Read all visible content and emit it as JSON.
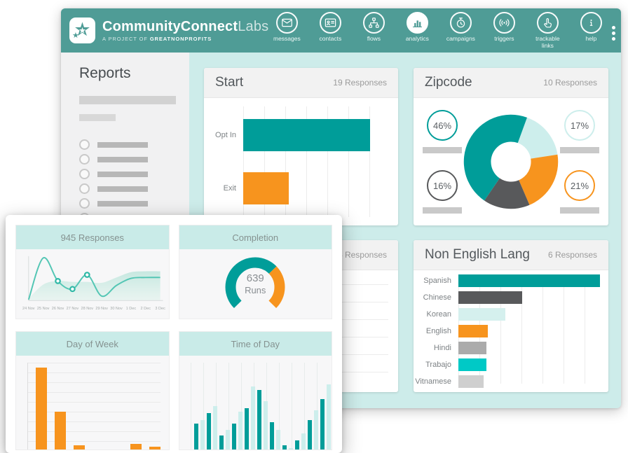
{
  "brand": {
    "name_bold": "CommunityConnect",
    "name_light": "Labs",
    "tagline_prefix": "A PROJECT OF ",
    "tagline_name": "GREATNONPROFITS"
  },
  "nav": {
    "items": [
      {
        "icon": "envelope-icon",
        "label": "messages",
        "active": false
      },
      {
        "icon": "contact-card-icon",
        "label": "contacts",
        "active": false
      },
      {
        "icon": "flow-tree-icon",
        "label": "flows",
        "active": false
      },
      {
        "icon": "bar-chart-icon",
        "label": "analytics",
        "active": true
      },
      {
        "icon": "stopwatch-icon",
        "label": "campaigns",
        "active": false
      },
      {
        "icon": "radio-signal-icon",
        "label": "triggers",
        "active": false
      },
      {
        "icon": "pointer-hand-icon",
        "label": "trackable links",
        "active": false
      },
      {
        "icon": "info-icon",
        "label": "help",
        "active": false
      }
    ]
  },
  "sidebar": {
    "title": "Reports",
    "placeholder_rows": 7
  },
  "cards": {
    "start": {
      "title": "Start",
      "responses": "19 Responses"
    },
    "zipcode": {
      "title": "Zipcode",
      "responses": "10 Responses",
      "badges": [
        {
          "label": "46%",
          "color": "#009d99",
          "side": "left"
        },
        {
          "label": "16%",
          "color": "#58595b",
          "side": "left"
        },
        {
          "label": "17%",
          "color": "#cdeeec",
          "side": "right"
        },
        {
          "label": "21%",
          "color": "#f7941e",
          "side": "right"
        }
      ]
    },
    "covered": {
      "responses": "14 Responses"
    },
    "non_english": {
      "title": "Non English Lang",
      "responses": "6 Responses"
    }
  },
  "popup": {
    "cards": [
      {
        "title": "945 Responses"
      },
      {
        "title": "Completion"
      },
      {
        "title": "Day of Week"
      },
      {
        "title": "Time of Day"
      }
    ],
    "gauge_value": "639",
    "gauge_unit": "Runs"
  },
  "chart_data": [
    {
      "id": "start",
      "type": "bar",
      "orientation": "horizontal",
      "title": "Start",
      "categories": [
        "Opt In",
        "Exit"
      ],
      "values": [
        14,
        5
      ],
      "xlim": [
        0,
        16
      ],
      "colors": [
        "#009d99",
        "#f7941e"
      ],
      "grid": true
    },
    {
      "id": "zipcode",
      "type": "pie",
      "donut": true,
      "title": "Zipcode",
      "start_angle_deg": 20,
      "segments": [
        {
          "label": "17%",
          "value": 17,
          "color": "#cdeeec"
        },
        {
          "label": "21%",
          "value": 21,
          "color": "#f7941e"
        },
        {
          "label": "16%",
          "value": 16,
          "color": "#58595b"
        },
        {
          "label": "46%",
          "value": 46,
          "color": "#009d99"
        }
      ]
    },
    {
      "id": "responses",
      "type": "line",
      "title": "945 Responses",
      "x": [
        "24 Nov",
        "25 Nov",
        "26 Nov",
        "27 Nov",
        "28 Nov",
        "29 Nov",
        "30 Nov",
        "1 Dec",
        "2 Dec",
        "3 Dec"
      ],
      "series": [
        {
          "name": "responses-line",
          "values": [
            2,
            96,
            44,
            26,
            58,
            10,
            34,
            50,
            52,
            52
          ]
        },
        {
          "name": "trend-area",
          "values": [
            4,
            36,
            44,
            42,
            42,
            40,
            52,
            64,
            66,
            66
          ]
        }
      ],
      "markers": [
        2,
        3,
        4
      ],
      "ylim": [
        0,
        100
      ],
      "grid": false
    },
    {
      "id": "completion",
      "type": "gauge",
      "title": "Completion",
      "value": "639",
      "unit": "Runs",
      "start_deg": -135,
      "sweep_deg": 270,
      "segments": [
        {
          "name": "complete",
          "color": "#009d99",
          "fraction": 0.67
        },
        {
          "name": "incomplete",
          "color": "#f7941e",
          "fraction": 0.33
        }
      ]
    },
    {
      "id": "dayofweek",
      "type": "bar",
      "orientation": "vertical",
      "title": "Day of Week",
      "values": [
        95,
        46,
        9,
        4,
        2,
        11,
        8
      ],
      "color": "#f7941e",
      "grid": true
    },
    {
      "id": "timeofday",
      "type": "bar",
      "orientation": "vertical",
      "title": "Time of Day",
      "values": [
        33,
        37,
        45,
        52,
        20,
        26,
        33,
        46,
        50,
        74,
        70,
        58,
        35,
        26,
        9,
        6,
        15,
        22,
        37,
        48,
        60,
        76
      ],
      "colors": [
        "#009d99",
        "#cdeeec"
      ],
      "grid": true
    },
    {
      "id": "nonenglish",
      "type": "bar",
      "orientation": "horizontal",
      "title": "Non English Lang",
      "categories": [
        "Spanish",
        "Chinese",
        "Korean",
        "English",
        "Hindi",
        "Trabajo",
        "Vitnamese"
      ],
      "values": [
        100,
        45,
        33,
        21,
        20,
        20,
        18
      ],
      "xlim": [
        0,
        100
      ],
      "colors": [
        "#009d99",
        "#58595b",
        "#d5f0ee",
        "#f7941e",
        "#ababab",
        "#00c9c6",
        "#cfcfcf"
      ],
      "grid": true
    }
  ],
  "colors": {
    "header_teal": "#4f9c96",
    "content_mint": "#cdecea",
    "teal": "#009d99",
    "orange": "#f7941e",
    "light_mint": "#cdeeec",
    "dark_gray": "#58595b",
    "cyan": "#00c9c6",
    "line_teal": "#53c6b4"
  }
}
